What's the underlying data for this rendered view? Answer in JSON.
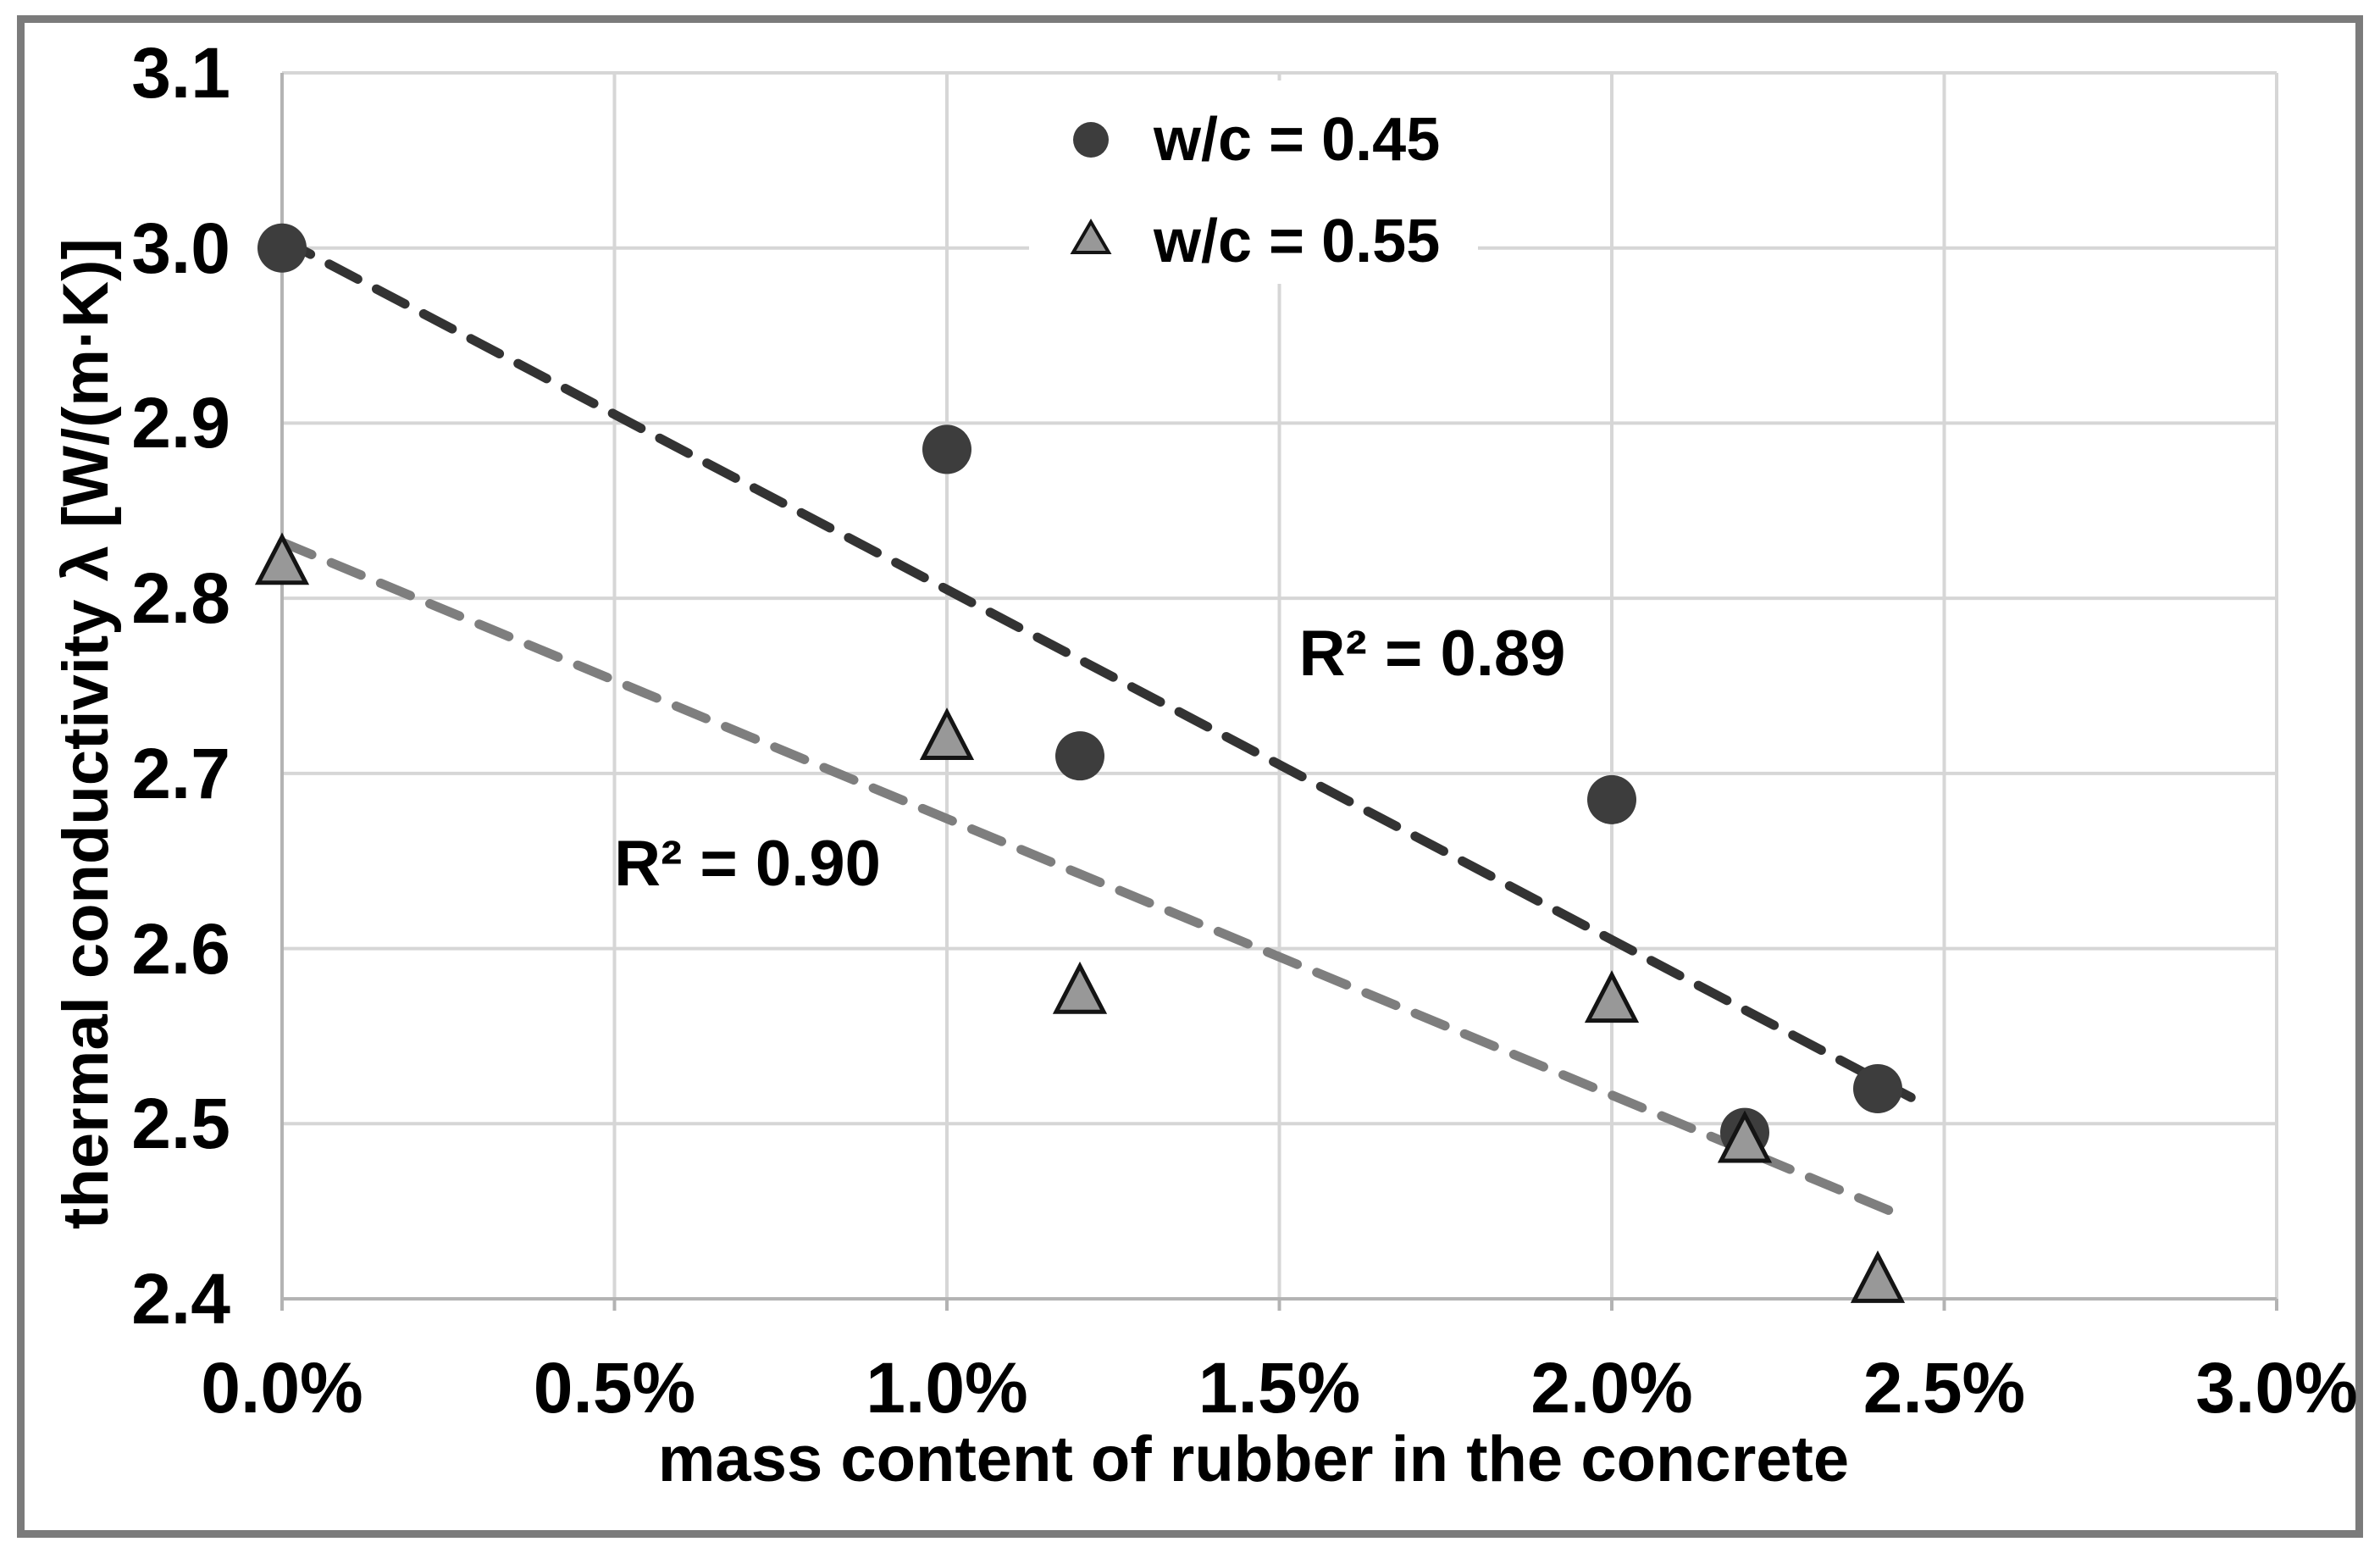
{
  "chart_data": {
    "type": "scatter",
    "title": "",
    "xlabel": "mass content of rubber in the concrete",
    "ylabel": "thermal conductivity λ [W/(m·K)]",
    "xlim": [
      0.0,
      3.0
    ],
    "ylim": [
      2.4,
      3.1
    ],
    "grid": true,
    "gridline_color": "#d6d6d6",
    "axis_line_color": "#b3b3b3",
    "x_ticks": [
      {
        "value": 0.0,
        "label": "0.0%"
      },
      {
        "value": 0.5,
        "label": "0.5%"
      },
      {
        "value": 1.0,
        "label": "1.0%"
      },
      {
        "value": 1.5,
        "label": "1.5%"
      },
      {
        "value": 2.0,
        "label": "2.0%"
      },
      {
        "value": 2.5,
        "label": "2.5%"
      },
      {
        "value": 3.0,
        "label": "3.0%"
      }
    ],
    "y_ticks": [
      {
        "value": 2.4,
        "label": "2.4"
      },
      {
        "value": 2.5,
        "label": "2.5"
      },
      {
        "value": 2.6,
        "label": "2.6"
      },
      {
        "value": 2.7,
        "label": "2.7"
      },
      {
        "value": 2.8,
        "label": "2.8"
      },
      {
        "value": 2.9,
        "label": "2.9"
      },
      {
        "value": 3.0,
        "label": "3.0"
      },
      {
        "value": 3.1,
        "label": "3.1"
      }
    ],
    "legend_position": "top-center-inside",
    "series": [
      {
        "name": "w/c = 0.45",
        "marker": "circle",
        "color": "#3d3d3d",
        "points": [
          {
            "x": 0.0,
            "y": 3.0
          },
          {
            "x": 1.0,
            "y": 2.885
          },
          {
            "x": 1.2,
            "y": 2.71
          },
          {
            "x": 2.0,
            "y": 2.685
          },
          {
            "x": 2.2,
            "y": 2.495
          },
          {
            "x": 2.4,
            "y": 2.52
          }
        ],
        "trendline": {
          "style": "dashed",
          "color": "#333333",
          "start": {
            "x": 0.0,
            "y": 3.005
          },
          "end": {
            "x": 2.45,
            "y": 2.515
          },
          "r_squared_label": "R² = 0.89",
          "label_pos": {
            "x": 1.73,
            "y": 2.768
          }
        }
      },
      {
        "name": "w/c = 0.55",
        "marker": "triangle",
        "color": "#989898",
        "outline": "#141414",
        "points": [
          {
            "x": 0.0,
            "y": 2.82
          },
          {
            "x": 1.0,
            "y": 2.72
          },
          {
            "x": 1.2,
            "y": 2.575
          },
          {
            "x": 2.0,
            "y": 2.57
          },
          {
            "x": 2.2,
            "y": 2.49
          },
          {
            "x": 2.4,
            "y": 2.41
          }
        ],
        "trendline": {
          "style": "dashed",
          "color": "#7e7e7e",
          "start": {
            "x": 0.0,
            "y": 2.832
          },
          "end": {
            "x": 2.42,
            "y": 2.45
          },
          "r_squared_label": "R² = 0.90",
          "label_pos": {
            "x": 0.7,
            "y": 2.648
          }
        }
      }
    ]
  },
  "frame": {
    "border_color": "#7b7b7b"
  }
}
